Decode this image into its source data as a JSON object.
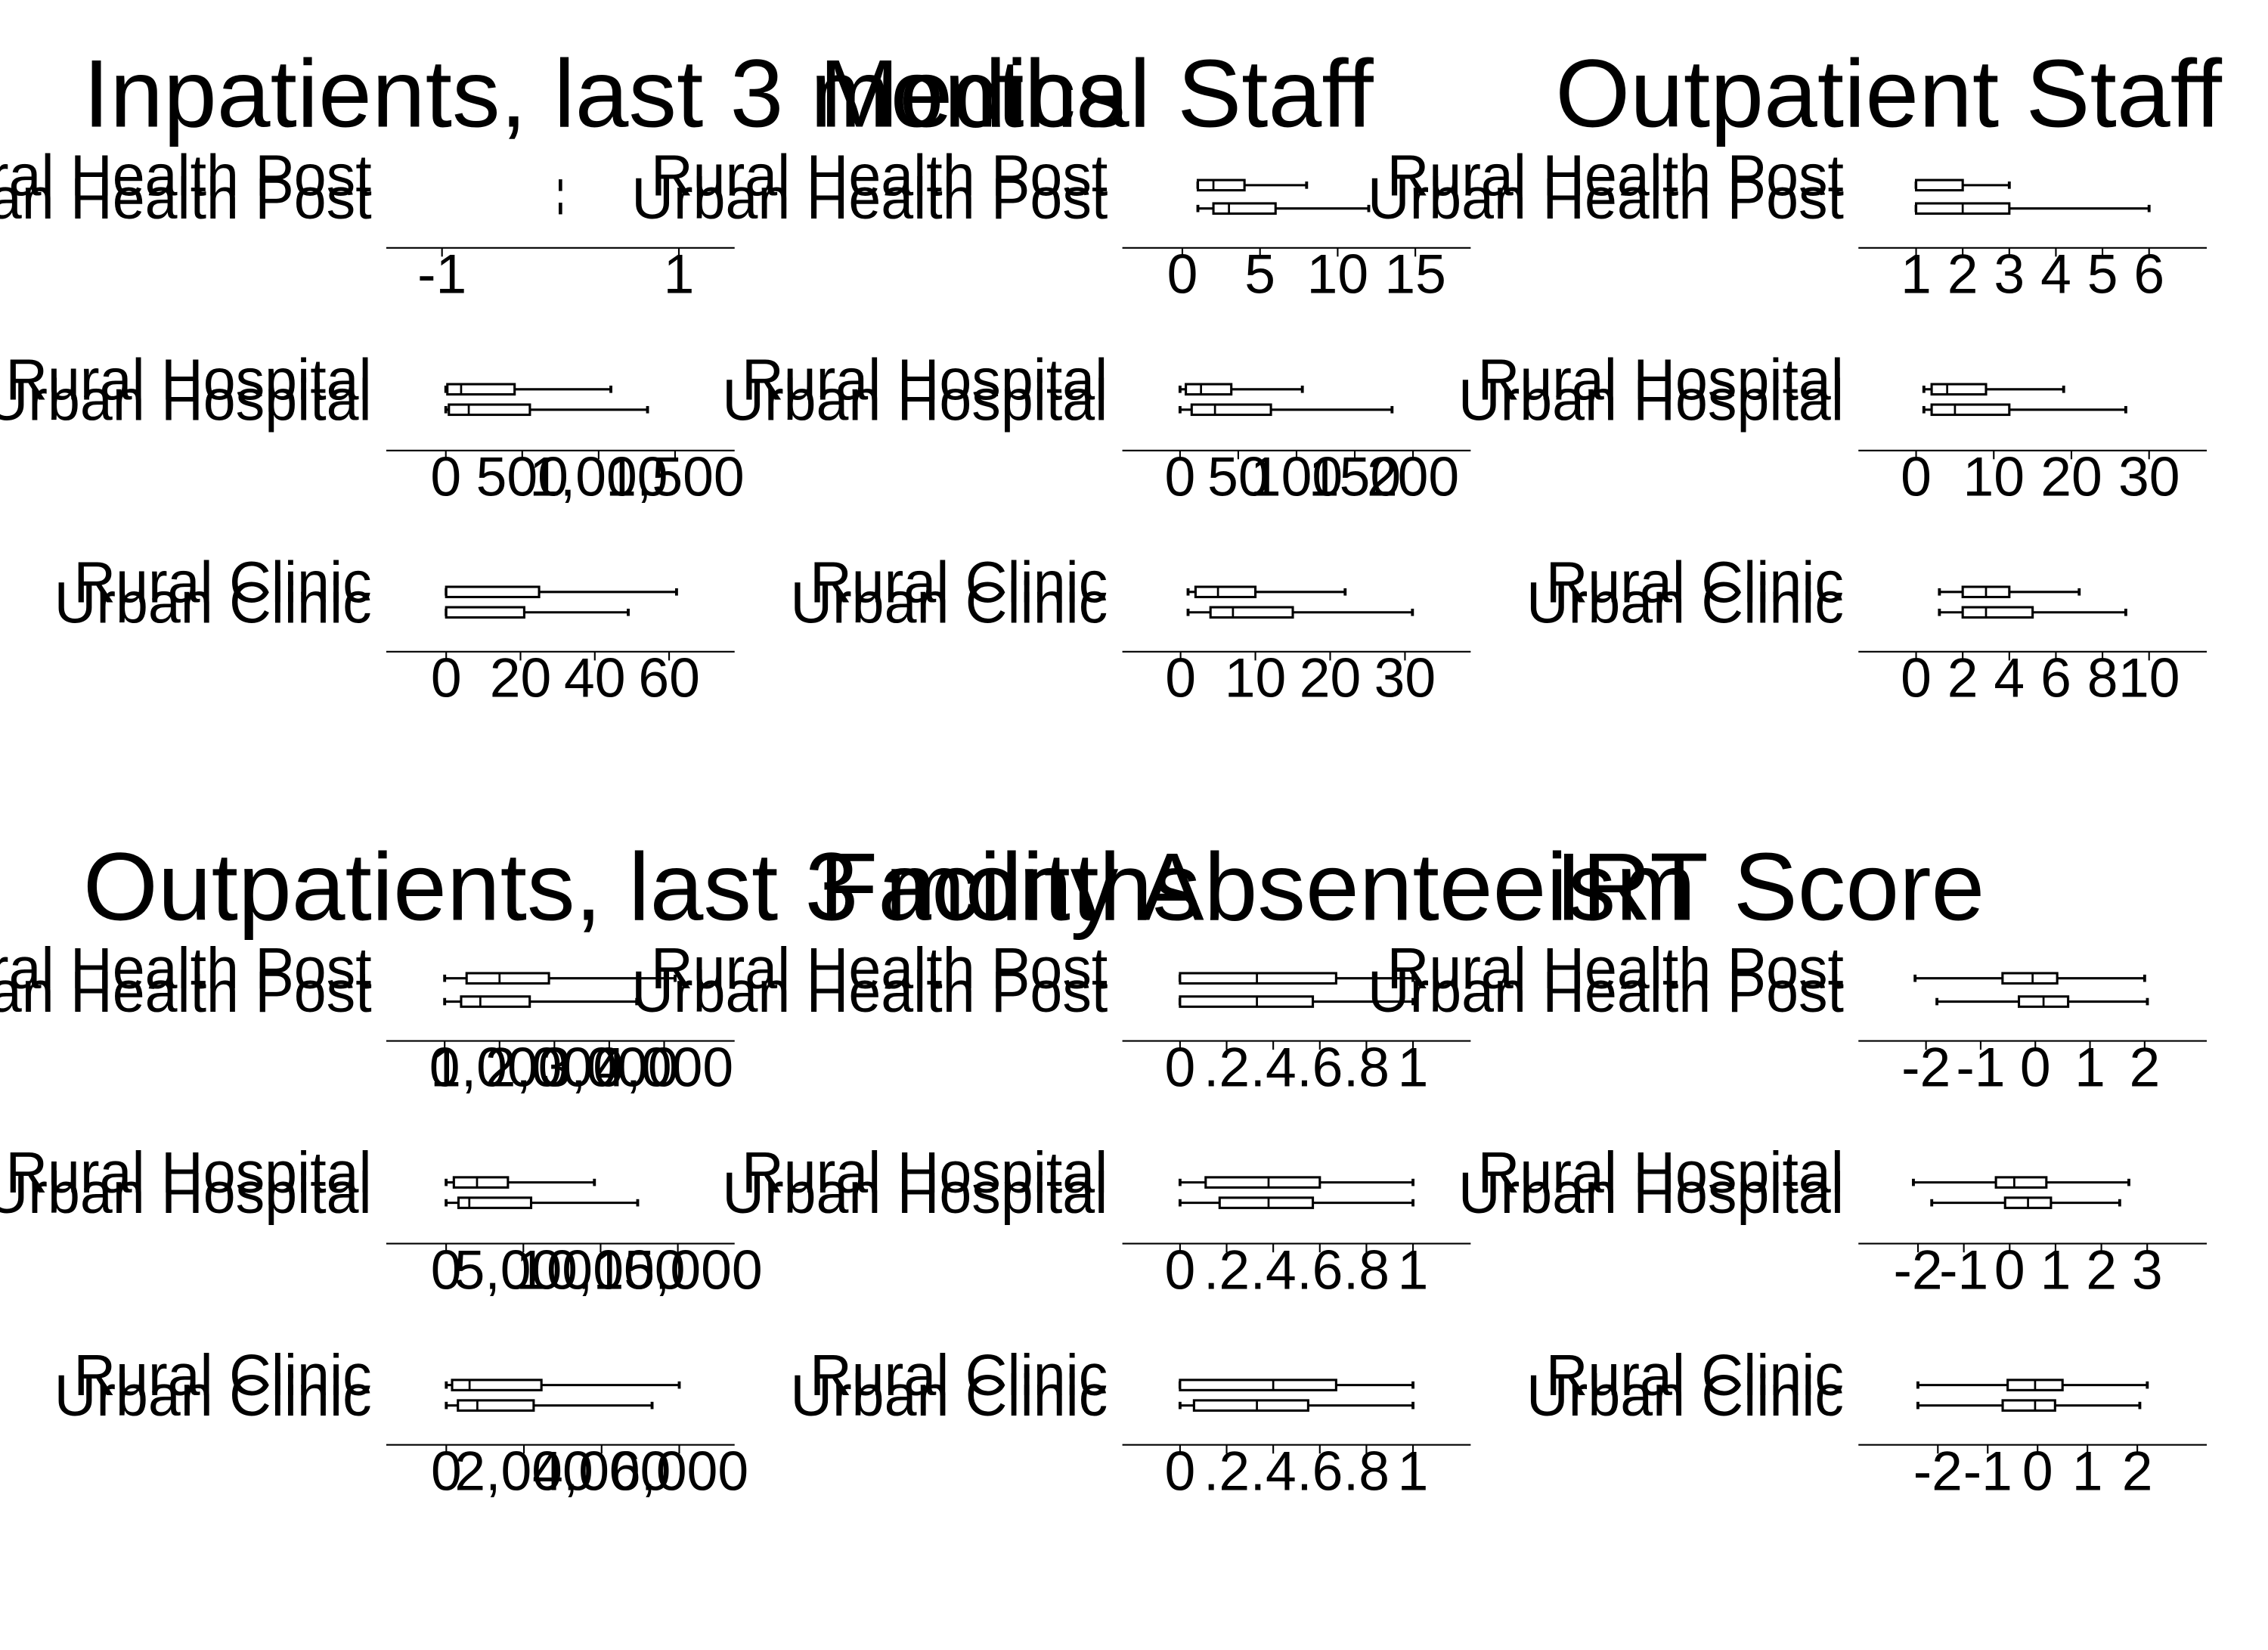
{
  "chart_data": [
    {
      "type": "boxplot",
      "orientation": "horizontal",
      "title": "Inpatients, last 3 months",
      "groups": [
        {
          "axis_min": -1.2,
          "axis_max": 1.2,
          "ticks": [
            -1,
            1
          ],
          "tick_labels": [
            "-1",
            "1"
          ],
          "rows": [
            {
              "label": "Rural Health Post",
              "min": 0,
              "q1": 0,
              "median": 0,
              "q3": 0,
              "max": 0
            },
            {
              "label": "Urban Health Post",
              "min": 0,
              "q1": 0,
              "median": 0,
              "q3": 0,
              "max": 0
            }
          ]
        },
        {
          "axis_min": -180,
          "axis_max": 1680,
          "ticks": [
            0,
            500,
            1000,
            1500
          ],
          "tick_labels": [
            "0",
            "500",
            "1,000",
            "1,500"
          ],
          "rows": [
            {
              "label": "Rural Hospital",
              "min": 0,
              "q1": 10,
              "median": 100,
              "q3": 450,
              "max": 1080
            },
            {
              "label": "Urban Hospital",
              "min": 0,
              "q1": 20,
              "median": 150,
              "q3": 550,
              "max": 1320
            }
          ]
        },
        {
          "axis_min": -7.5,
          "axis_max": 69,
          "ticks": [
            0,
            20,
            40,
            60
          ],
          "tick_labels": [
            "0",
            "20",
            "40",
            "60"
          ],
          "rows": [
            {
              "label": "Rural Clinic",
              "min": 0,
              "q1": 0,
              "median": 0,
              "q3": 25,
              "max": 62
            },
            {
              "label": "Urban Clinic",
              "min": 0,
              "q1": 0,
              "median": 0,
              "q3": 21,
              "max": 49
            }
          ]
        }
      ]
    },
    {
      "type": "boxplot",
      "orientation": "horizontal",
      "title": "Medical Staff",
      "groups": [
        {
          "axis_min": -1.8,
          "axis_max": 16.5,
          "ticks": [
            0,
            5,
            10,
            15
          ],
          "tick_labels": [
            "0",
            "5",
            "10",
            "15"
          ],
          "rows": [
            {
              "label": "Rural Health Post",
              "min": 1,
              "q1": 1,
              "median": 2,
              "q3": 4,
              "max": 8
            },
            {
              "label": "Urban Health Post",
              "min": 1,
              "q1": 2,
              "median": 3,
              "q3": 6,
              "max": 12
            }
          ]
        },
        {
          "axis_min": -22,
          "axis_max": 222,
          "ticks": [
            0,
            50,
            100,
            150,
            200
          ],
          "tick_labels": [
            "0",
            "50",
            "100",
            "150",
            "200"
          ],
          "rows": [
            {
              "label": "Rural Hospital",
              "min": 0,
              "q1": 5,
              "median": 18,
              "q3": 44,
              "max": 105
            },
            {
              "label": "Urban Hospital",
              "min": 0,
              "q1": 10,
              "median": 30,
              "q3": 78,
              "max": 182
            }
          ]
        },
        {
          "axis_min": -3.5,
          "axis_max": 34.5,
          "ticks": [
            0,
            10,
            20,
            30
          ],
          "tick_labels": [
            "0",
            "10",
            "20",
            "30"
          ],
          "rows": [
            {
              "label": "Rural Clinic",
              "min": 1,
              "q1": 2,
              "median": 5,
              "q3": 10,
              "max": 22
            },
            {
              "label": "Urban Clinic",
              "min": 1,
              "q1": 4,
              "median": 7,
              "q3": 15,
              "max": 31
            }
          ]
        }
      ]
    },
    {
      "type": "boxplot",
      "orientation": "horizontal",
      "title": "Outpatient Staff",
      "groups": [
        {
          "axis_min": 0.45,
          "axis_max": 6.55,
          "ticks": [
            1,
            2,
            3,
            4,
            5,
            6
          ],
          "tick_labels": [
            "1",
            "2",
            "3",
            "4",
            "5",
            "6"
          ],
          "rows": [
            {
              "label": "Rural Health Post",
              "min": 1,
              "q1": 1,
              "median": 1,
              "q3": 2,
              "max": 3
            },
            {
              "label": "Urban Health Post",
              "min": 1,
              "q1": 1,
              "median": 2,
              "q3": 3,
              "max": 6
            }
          ]
        },
        {
          "axis_min": -3.3,
          "axis_max": 33.3,
          "ticks": [
            0,
            10,
            20,
            30
          ],
          "tick_labels": [
            "0",
            "10",
            "20",
            "30"
          ],
          "rows": [
            {
              "label": "Rural Hospital",
              "min": 1,
              "q1": 2,
              "median": 4,
              "q3": 9,
              "max": 19
            },
            {
              "label": "Urban Hospital",
              "min": 1,
              "q1": 2,
              "median": 5,
              "q3": 12,
              "max": 27
            }
          ]
        },
        {
          "axis_min": -1.1,
          "axis_max": 11.1,
          "ticks": [
            0,
            2,
            4,
            6,
            8,
            10
          ],
          "tick_labels": [
            "0",
            "2",
            "4",
            "6",
            "8",
            "10"
          ],
          "rows": [
            {
              "label": "Rural Clinic",
              "min": 1,
              "q1": 2,
              "median": 3,
              "q3": 4,
              "max": 7
            },
            {
              "label": "Urban Clinic",
              "min": 1,
              "q1": 2,
              "median": 3,
              "q3": 5,
              "max": 9
            }
          ]
        }
      ]
    },
    {
      "type": "boxplot",
      "orientation": "horizontal",
      "title": "Outpatients, last 3 months",
      "groups": [
        {
          "axis_min": -480,
          "axis_max": 4700,
          "ticks": [
            0,
            1000,
            2000,
            3000,
            4000
          ],
          "tick_labels": [
            "0",
            "1,000",
            "2,000",
            "3,000",
            "4,000"
          ],
          "rows": [
            {
              "label": "Rural Health Post",
              "min": 0,
              "q1": 400,
              "median": 1000,
              "q3": 1900,
              "max": 4200
            },
            {
              "label": "Urban Health Post",
              "min": 0,
              "q1": 300,
              "median": 650,
              "q3": 1550,
              "max": 3500
            }
          ]
        },
        {
          "axis_min": -1800,
          "axis_max": 16600,
          "ticks": [
            0,
            5000,
            10000,
            15000
          ],
          "tick_labels": [
            "0",
            "5,000",
            "10,000",
            "15,000"
          ],
          "rows": [
            {
              "label": "Rural Hospital",
              "min": 0,
              "q1": 500,
              "median": 2000,
              "q3": 4000,
              "max": 9600
            },
            {
              "label": "Urban Hospital",
              "min": 0,
              "q1": 800,
              "median": 1500,
              "q3": 5500,
              "max": 12400
            }
          ]
        },
        {
          "axis_min": -720,
          "axis_max": 6600,
          "ticks": [
            0,
            2000,
            4000,
            6000
          ],
          "tick_labels": [
            "0",
            "2,000",
            "4,000",
            "6,000"
          ],
          "rows": [
            {
              "label": "Rural Clinic",
              "min": 0,
              "q1": 150,
              "median": 600,
              "q3": 2450,
              "max": 6000
            },
            {
              "label": "Urban Clinic",
              "min": 0,
              "q1": 300,
              "median": 800,
              "q3": 2250,
              "max": 5300
            }
          ]
        }
      ]
    },
    {
      "type": "boxplot",
      "orientation": "horizontal",
      "title": "Facility Absenteeism",
      "groups": [
        {
          "axis_min": -0.11,
          "axis_max": 1.11,
          "ticks": [
            0,
            0.2,
            0.4,
            0.6,
            0.8,
            1
          ],
          "tick_labels": [
            "0",
            ".2",
            ".4",
            ".6",
            ".8",
            "1"
          ],
          "rows": [
            {
              "label": "Rural Health Post",
              "min": 0,
              "q1": 0,
              "median": 0.33,
              "q3": 0.67,
              "max": 1
            },
            {
              "label": "Urban Health Post",
              "min": 0,
              "q1": 0,
              "median": 0.33,
              "q3": 0.57,
              "max": 1
            }
          ]
        },
        {
          "axis_min": -0.11,
          "axis_max": 1.11,
          "ticks": [
            0,
            0.2,
            0.4,
            0.6,
            0.8,
            1
          ],
          "tick_labels": [
            "0",
            ".2",
            ".4",
            ".6",
            ".8",
            "1"
          ],
          "rows": [
            {
              "label": "Rural Hospital",
              "min": 0,
              "q1": 0.11,
              "median": 0.38,
              "q3": 0.6,
              "max": 1
            },
            {
              "label": "Urban Hospital",
              "min": 0,
              "q1": 0.17,
              "median": 0.38,
              "q3": 0.57,
              "max": 1
            }
          ]
        },
        {
          "axis_min": -0.11,
          "axis_max": 1.11,
          "ticks": [
            0,
            0.2,
            0.4,
            0.6,
            0.8,
            1
          ],
          "tick_labels": [
            "0",
            ".2",
            ".4",
            ".6",
            ".8",
            "1"
          ],
          "rows": [
            {
              "label": "Rural Clinic",
              "min": 0,
              "q1": 0,
              "median": 0.4,
              "q3": 0.67,
              "max": 1
            },
            {
              "label": "Urban Clinic",
              "min": 0,
              "q1": 0.06,
              "median": 0.33,
              "q3": 0.55,
              "max": 1
            }
          ]
        }
      ]
    },
    {
      "type": "boxplot",
      "orientation": "horizontal",
      "title": "IRT Score",
      "groups": [
        {
          "axis_min": -2.65,
          "axis_max": 2.55,
          "ticks": [
            -2,
            -1,
            0,
            1,
            2
          ],
          "tick_labels": [
            "-2",
            "-1",
            "0",
            "1",
            "2"
          ],
          "rows": [
            {
              "label": "Rural Health Post",
              "min": -2.2,
              "q1": -0.6,
              "median": -0.05,
              "q3": 0.4,
              "max": 2
            },
            {
              "label": "Urban Health Post",
              "min": -1.8,
              "q1": -0.3,
              "median": 0.15,
              "q3": 0.6,
              "max": 2.05
            }
          ]
        },
        {
          "axis_min": -2.6,
          "axis_max": 3.6,
          "ticks": [
            -2,
            -1,
            0,
            1,
            2,
            3
          ],
          "tick_labels": [
            "-2",
            "-1",
            "0",
            "1",
            "2",
            "3"
          ],
          "rows": [
            {
              "label": "Rural Hospital",
              "min": -2.1,
              "q1": -0.3,
              "median": 0.1,
              "q3": 0.8,
              "max": 2.6
            },
            {
              "label": "Urban Hospital",
              "min": -1.7,
              "q1": -0.1,
              "median": 0.4,
              "q3": 0.9,
              "max": 2.4
            }
          ]
        },
        {
          "axis_min": -2.95,
          "axis_max": 2.75,
          "ticks": [
            -2,
            -1,
            0,
            1,
            2
          ],
          "tick_labels": [
            "-2",
            "-1",
            "0",
            "1",
            "2"
          ],
          "rows": [
            {
              "label": "Rural Clinic",
              "min": -2.4,
              "q1": -0.6,
              "median": -0.05,
              "q3": 0.5,
              "max": 2.2
            },
            {
              "label": "Urban Clinic",
              "min": -2.4,
              "q1": -0.7,
              "median": -0.05,
              "q3": 0.35,
              "max": 2.05
            }
          ]
        }
      ]
    }
  ]
}
